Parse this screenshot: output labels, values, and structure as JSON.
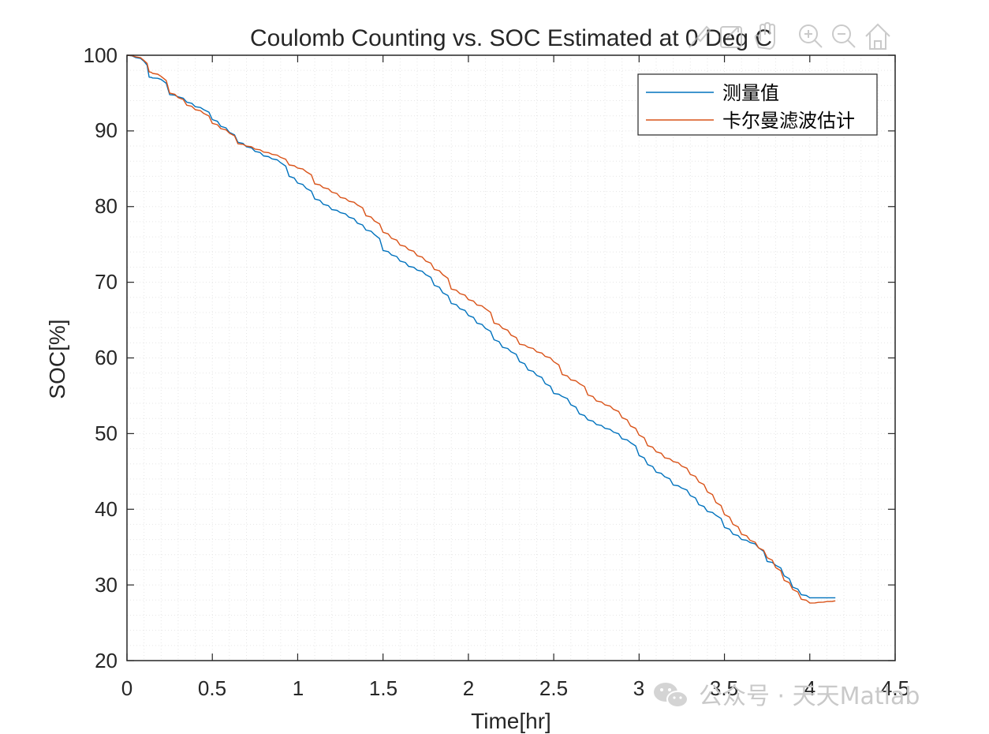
{
  "chart_data": {
    "type": "line",
    "title": "Coulomb Counting vs. SOC Estimated at 0 Deg C",
    "xlabel": "Time[hr]",
    "ylabel": "SOC[%]",
    "xlim": [
      0,
      4.5
    ],
    "ylim": [
      20,
      100
    ],
    "xticks": [
      "0",
      "0.5",
      "1",
      "1.5",
      "2",
      "2.5",
      "3",
      "3.5",
      "4",
      "4.5"
    ],
    "yticks": [
      "20",
      "30",
      "40",
      "50",
      "60",
      "70",
      "80",
      "90",
      "100"
    ],
    "grid": "minor dotted",
    "legend_position": "top-right",
    "series": [
      {
        "name": "测量值",
        "color": "#0072BD",
        "x": [
          0,
          0.05,
          0.1,
          0.13,
          0.15,
          0.2,
          0.25,
          0.3,
          0.35,
          0.4,
          0.45,
          0.5,
          0.55,
          0.6,
          0.65,
          0.7,
          0.75,
          0.8,
          0.85,
          0.9,
          0.95,
          1.0,
          1.05,
          1.1,
          1.15,
          1.2,
          1.25,
          1.3,
          1.35,
          1.4,
          1.45,
          1.5,
          1.55,
          1.6,
          1.65,
          1.7,
          1.75,
          1.8,
          1.85,
          1.9,
          1.95,
          2.0,
          2.05,
          2.1,
          2.15,
          2.2,
          2.25,
          2.3,
          2.35,
          2.4,
          2.45,
          2.5,
          2.55,
          2.6,
          2.65,
          2.7,
          2.75,
          2.8,
          2.85,
          2.9,
          2.95,
          3.0,
          3.05,
          3.1,
          3.15,
          3.2,
          3.25,
          3.3,
          3.35,
          3.4,
          3.45,
          3.5,
          3.55,
          3.6,
          3.65,
          3.7,
          3.75,
          3.8,
          3.85,
          3.9,
          3.95,
          4.0,
          4.05,
          4.1,
          4.15
        ],
        "y": [
          100,
          99.7,
          99.2,
          97.1,
          97.0,
          96.8,
          94.8,
          94.5,
          93.8,
          93.2,
          92.8,
          91.5,
          90.6,
          89.8,
          88.5,
          87.9,
          87.3,
          86.7,
          86.3,
          85.8,
          84.0,
          83.1,
          82.4,
          81.0,
          80.3,
          79.6,
          79.2,
          78.6,
          77.8,
          76.9,
          76.3,
          74.2,
          73.6,
          72.8,
          72.1,
          71.6,
          71.0,
          69.6,
          68.6,
          67.2,
          66.5,
          65.6,
          64.6,
          63.9,
          62.4,
          61.4,
          60.8,
          59.5,
          58.4,
          57.7,
          56.6,
          55.3,
          54.9,
          53.8,
          52.6,
          51.8,
          51.2,
          50.7,
          50.2,
          49.3,
          48.8,
          47.1,
          45.9,
          44.9,
          44.3,
          43.2,
          42.8,
          41.8,
          40.6,
          39.7,
          39.2,
          37.6,
          36.7,
          36.0,
          35.6,
          34.9,
          33.1,
          32.6,
          31.2,
          29.7,
          28.7,
          28.3,
          28.3,
          28.3,
          28.3
        ]
      },
      {
        "name": "卡尔曼滤波估计",
        "color": "#D95319",
        "x": [
          0,
          0.05,
          0.1,
          0.13,
          0.15,
          0.2,
          0.25,
          0.3,
          0.35,
          0.4,
          0.45,
          0.5,
          0.55,
          0.6,
          0.65,
          0.7,
          0.75,
          0.8,
          0.85,
          0.9,
          0.95,
          1.0,
          1.05,
          1.1,
          1.15,
          1.2,
          1.25,
          1.3,
          1.35,
          1.4,
          1.45,
          1.5,
          1.55,
          1.6,
          1.65,
          1.7,
          1.75,
          1.8,
          1.85,
          1.9,
          1.95,
          2.0,
          2.05,
          2.1,
          2.15,
          2.2,
          2.25,
          2.3,
          2.35,
          2.4,
          2.45,
          2.5,
          2.55,
          2.6,
          2.65,
          2.7,
          2.75,
          2.8,
          2.85,
          2.9,
          2.95,
          3.0,
          3.05,
          3.1,
          3.15,
          3.2,
          3.25,
          3.3,
          3.35,
          3.4,
          3.45,
          3.5,
          3.55,
          3.6,
          3.65,
          3.7,
          3.75,
          3.8,
          3.85,
          3.9,
          3.95,
          4.0,
          4.05,
          4.1,
          4.15
        ],
        "y": [
          100,
          99.8,
          99.3,
          97.8,
          97.6,
          97.2,
          95.0,
          94.4,
          93.4,
          92.8,
          92.3,
          91.0,
          90.3,
          89.7,
          88.3,
          88.0,
          87.6,
          87.2,
          86.9,
          86.5,
          85.5,
          85.1,
          84.6,
          83.0,
          82.5,
          81.9,
          81.2,
          80.7,
          80.2,
          78.8,
          78.1,
          76.6,
          75.8,
          74.9,
          74.3,
          73.5,
          72.8,
          71.7,
          71.0,
          69.1,
          68.5,
          67.7,
          67.0,
          66.5,
          64.6,
          63.9,
          63.0,
          61.8,
          61.4,
          60.8,
          60.2,
          59.5,
          57.8,
          57.1,
          56.6,
          55.1,
          54.3,
          53.8,
          53.2,
          52.1,
          51.0,
          49.8,
          48.4,
          47.6,
          46.8,
          46.3,
          45.7,
          44.6,
          43.6,
          42.3,
          40.9,
          39.3,
          38.0,
          36.7,
          35.9,
          34.9,
          33.6,
          32.3,
          30.6,
          29.4,
          28.1,
          27.6,
          27.7,
          27.8,
          27.9
        ]
      }
    ]
  },
  "watermark": {
    "text": "公众号 · 天天Matlab",
    "icon": "wechat-icon"
  },
  "toolbar": {
    "icons": [
      "brush-icon",
      "export-icon",
      "pan-hand-icon",
      "zoom-in-icon",
      "zoom-out-icon",
      "home-icon"
    ]
  }
}
